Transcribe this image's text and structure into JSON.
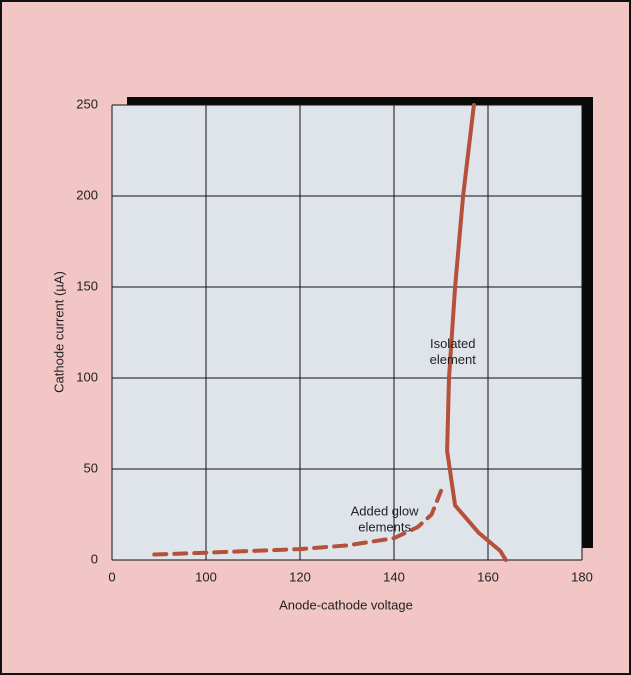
{
  "chart_data": {
    "type": "line",
    "x_label": "Anode-cathode voltage",
    "y_label": "Cathode current (µA)",
    "xlim": [
      80,
      180
    ],
    "xticks": [
      {
        "value": 80,
        "label": "0"
      },
      100,
      120,
      140,
      160,
      180
    ],
    "ylim": [
      0,
      250
    ],
    "yticks": [
      0,
      50,
      100,
      150,
      200,
      250
    ],
    "grid": true,
    "series": [
      {
        "color": "#b5503a",
        "style": "solid",
        "x": [
          157,
          154.7,
          153,
          151.7,
          151.3,
          153,
          158,
          162.6,
          163.8
        ],
        "values": [
          250,
          200,
          150,
          100,
          60,
          30,
          15,
          5,
          0
        ]
      },
      {
        "color": "#b5503a",
        "style": "dashed",
        "x": [
          89,
          100,
          120,
          130,
          140,
          145,
          148,
          150
        ],
        "values": [
          3,
          4,
          6,
          8,
          12,
          18,
          25,
          38
        ]
      }
    ],
    "annotations": [
      {
        "lines": [
          "Isolated",
          "element"
        ],
        "x": 152.5,
        "y": 118
      },
      {
        "lines": [
          "Added glow",
          "elements"
        ],
        "x": 138,
        "y": 26
      }
    ]
  }
}
